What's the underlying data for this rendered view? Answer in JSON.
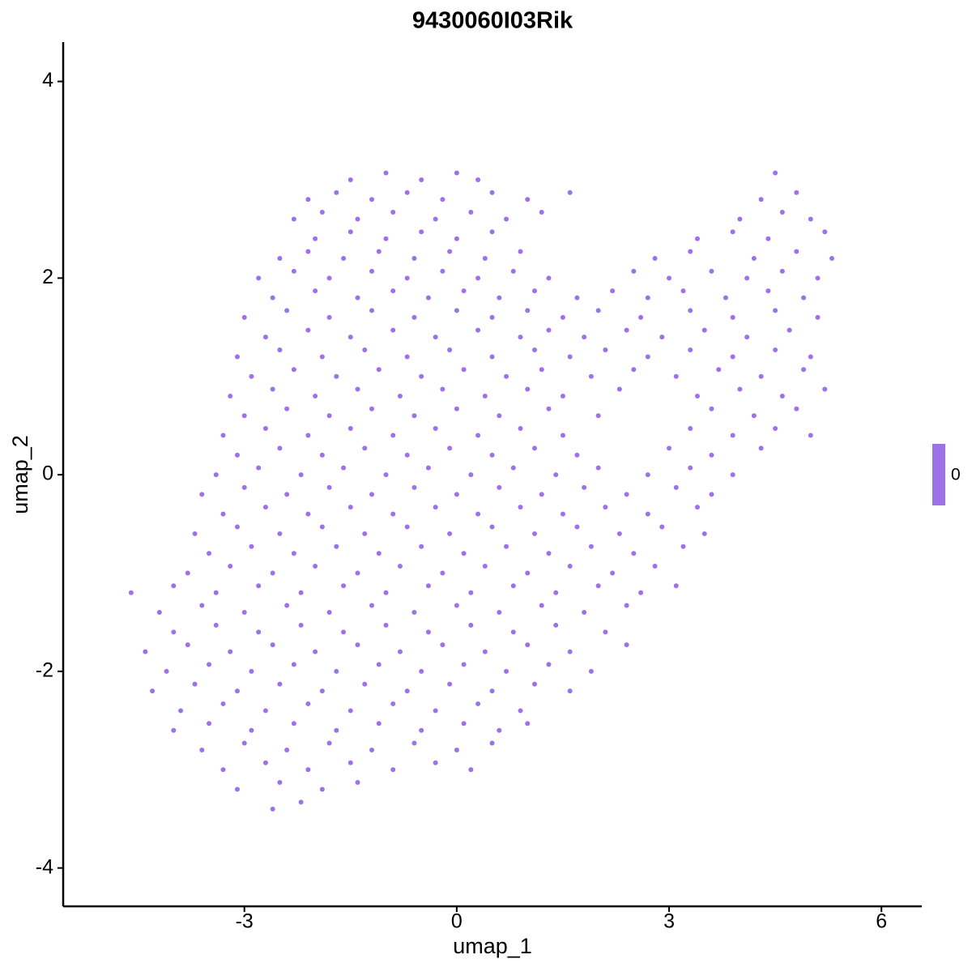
{
  "chart_data": {
    "type": "scatter",
    "title": "9430060I03Rik",
    "xlabel": "umap_1",
    "ylabel": "umap_2",
    "color": "#9b72e8",
    "xlim": [
      -5.56,
      6.57
    ],
    "ylim": [
      -4.39,
      4.4
    ],
    "xticks": [
      -3,
      0,
      3,
      6
    ],
    "yticks": [
      -4,
      -2,
      0,
      2,
      4
    ],
    "grid": false,
    "colorbar_ticks": [
      0
    ],
    "x": [
      -1.5,
      -1,
      -0.5,
      0,
      0.3,
      4.5,
      -2.1,
      -1.7,
      -1.2,
      -0.7,
      -0.2,
      0.5,
      1.0,
      1.6,
      4.3,
      4.8,
      -2.3,
      -1.9,
      -1.4,
      -0.9,
      -0.3,
      0.2,
      0.7,
      1.2,
      4.0,
      4.6,
      5.0,
      -2.0,
      -1.5,
      -1.0,
      -0.5,
      0,
      0.5,
      3.4,
      3.9,
      4.4,
      5.2,
      -2.5,
      -2.1,
      -1.6,
      -1.1,
      -0.6,
      -0.1,
      0.4,
      0.9,
      2.8,
      3.3,
      4.2,
      4.8,
      5.3,
      -2.8,
      -2.3,
      -1.8,
      -1.2,
      -0.7,
      -0.2,
      0.3,
      0.8,
      1.3,
      2.5,
      3.0,
      3.6,
      4.1,
      4.6,
      5.1,
      -2.6,
      -2.0,
      -1.4,
      -0.9,
      -0.4,
      0.1,
      0.6,
      1.1,
      1.7,
      2.2,
      2.7,
      3.2,
      3.8,
      4.4,
      4.9,
      -3.0,
      -2.4,
      -1.8,
      -1.2,
      -0.6,
      0,
      0.5,
      1.0,
      1.5,
      2.0,
      2.6,
      3.3,
      3.9,
      4.5,
      5.1,
      -2.7,
      -2.1,
      -1.5,
      -0.9,
      -0.3,
      0.3,
      0.9,
      1.3,
      1.8,
      2.4,
      2.9,
      3.5,
      4.1,
      4.7,
      -3.1,
      -2.5,
      -1.9,
      -1.3,
      -0.7,
      -0.1,
      0.5,
      1.1,
      1.6,
      2.1,
      2.7,
      3.3,
      3.9,
      4.5,
      5.0,
      -2.9,
      -2.3,
      -1.7,
      -1.1,
      -0.5,
      0.1,
      0.7,
      1.2,
      1.9,
      2.5,
      3.1,
      3.7,
      4.3,
      4.9,
      -3.2,
      -2.6,
      -2.0,
      -1.4,
      -0.8,
      -0.2,
      0.4,
      1.0,
      1.5,
      2.3,
      3.4,
      4.0,
      4.6,
      5.2,
      -3.0,
      -2.4,
      -1.8,
      -1.2,
      -0.6,
      0,
      0.6,
      1.3,
      2.0,
      3.6,
      4.2,
      4.8,
      -3.3,
      -2.7,
      -2.1,
      -1.5,
      -0.9,
      -0.3,
      0.3,
      0.9,
      1.5,
      3.3,
      3.9,
      4.5,
      5.0,
      -3.1,
      -2.5,
      -1.9,
      -1.3,
      -0.7,
      -0.1,
      0.5,
      1.1,
      1.7,
      3.0,
      3.6,
      4.3,
      -3.4,
      -2.8,
      -2.2,
      -1.6,
      -1.0,
      -0.4,
      0.2,
      0.8,
      1.4,
      2.0,
      2.7,
      3.3,
      3.9,
      -3.6,
      -3.0,
      -2.4,
      -1.8,
      -1.2,
      -0.6,
      0,
      0.6,
      1.2,
      1.8,
      2.4,
      3.1,
      3.6,
      -3.3,
      -2.7,
      -2.1,
      -1.5,
      -0.9,
      -0.3,
      0.3,
      0.9,
      1.5,
      2.1,
      2.7,
      3.4,
      -3.7,
      -3.1,
      -2.5,
      -1.9,
      -1.3,
      -0.7,
      -0.1,
      0.5,
      1.1,
      1.7,
      2.3,
      2.9,
      3.5,
      -3.5,
      -2.9,
      -2.3,
      -1.7,
      -1.1,
      -0.5,
      0.1,
      0.7,
      1.3,
      1.9,
      2.5,
      3.2,
      -3.8,
      -3.2,
      -2.6,
      -2.0,
      -1.4,
      -0.8,
      -0.2,
      0.4,
      1.0,
      1.6,
      2.2,
      2.8,
      -4.6,
      -4.0,
      -3.4,
      -2.8,
      -2.2,
      -1.6,
      -1.0,
      -0.4,
      0.2,
      0.8,
      1.4,
      2.0,
      2.6,
      3.1,
      -4.2,
      -3.6,
      -3.0,
      -2.4,
      -1.8,
      -1.2,
      -0.6,
      0,
      0.6,
      1.2,
      1.8,
      2.4,
      -4.0,
      -3.4,
      -2.8,
      -2.2,
      -1.6,
      -1.0,
      -0.4,
      0.2,
      0.8,
      1.4,
      2.1,
      -4.4,
      -3.8,
      -3.2,
      -2.6,
      -2.0,
      -1.4,
      -0.8,
      -0.2,
      0.4,
      1.0,
      1.6,
      2.4,
      -4.1,
      -3.5,
      -2.9,
      -2.3,
      -1.7,
      -1.1,
      -0.5,
      0.1,
      0.7,
      1.3,
      1.9,
      -4.3,
      -3.7,
      -3.1,
      -2.5,
      -1.9,
      -1.3,
      -0.7,
      -0.1,
      0.5,
      1.1,
      1.6,
      -3.9,
      -3.3,
      -2.7,
      -2.1,
      -1.5,
      -0.9,
      -0.3,
      0.3,
      0.9,
      -4.0,
      -3.5,
      -2.9,
      -2.3,
      -1.7,
      -1.1,
      -0.5,
      0.1,
      0.6,
      1.0,
      -3.6,
      -3.0,
      -2.4,
      -1.8,
      -1.2,
      -0.6,
      0,
      0.5,
      -3.3,
      -2.7,
      -2.1,
      -1.5,
      -0.9,
      -0.3,
      0.2,
      -3.1,
      -2.5,
      -1.9,
      -1.4,
      -2.6,
      -2.2
    ],
    "y": [
      3.0,
      3.07,
      3.0,
      3.07,
      3.0,
      3.07,
      2.8,
      2.87,
      2.8,
      2.87,
      2.8,
      2.87,
      2.8,
      2.87,
      2.8,
      2.87,
      2.6,
      2.67,
      2.6,
      2.67,
      2.6,
      2.67,
      2.6,
      2.67,
      2.6,
      2.67,
      2.6,
      2.4,
      2.47,
      2.4,
      2.47,
      2.4,
      2.47,
      2.4,
      2.47,
      2.4,
      2.47,
      2.2,
      2.27,
      2.2,
      2.27,
      2.2,
      2.27,
      2.2,
      2.27,
      2.2,
      2.27,
      2.2,
      2.27,
      2.2,
      2.0,
      2.07,
      2.0,
      2.07,
      2.0,
      2.07,
      2.0,
      2.07,
      2.0,
      2.07,
      2.0,
      2.07,
      2.0,
      2.07,
      2.0,
      1.8,
      1.87,
      1.8,
      1.87,
      1.8,
      1.87,
      1.8,
      1.87,
      1.8,
      1.87,
      1.8,
      1.87,
      1.8,
      1.87,
      1.8,
      1.6,
      1.67,
      1.6,
      1.67,
      1.6,
      1.67,
      1.6,
      1.67,
      1.6,
      1.67,
      1.6,
      1.67,
      1.6,
      1.67,
      1.6,
      1.4,
      1.47,
      1.4,
      1.47,
      1.4,
      1.47,
      1.4,
      1.47,
      1.4,
      1.47,
      1.4,
      1.47,
      1.4,
      1.47,
      1.2,
      1.27,
      1.2,
      1.27,
      1.2,
      1.27,
      1.2,
      1.27,
      1.2,
      1.27,
      1.2,
      1.27,
      1.2,
      1.27,
      1.2,
      1.0,
      1.07,
      1.0,
      1.07,
      1.0,
      1.07,
      1.0,
      1.07,
      1.0,
      1.07,
      1.0,
      1.07,
      1.0,
      1.07,
      0.8,
      0.87,
      0.8,
      0.87,
      0.8,
      0.87,
      0.8,
      0.87,
      0.8,
      0.87,
      0.8,
      0.87,
      0.8,
      0.87,
      0.6,
      0.67,
      0.6,
      0.67,
      0.6,
      0.67,
      0.6,
      0.67,
      0.6,
      0.67,
      0.6,
      0.67,
      0.4,
      0.47,
      0.4,
      0.47,
      0.4,
      0.47,
      0.4,
      0.47,
      0.4,
      0.47,
      0.4,
      0.47,
      0.4,
      0.2,
      0.27,
      0.2,
      0.27,
      0.2,
      0.27,
      0.2,
      0.27,
      0.2,
      0.27,
      0.2,
      0.27,
      0,
      0.07,
      0,
      0.07,
      0,
      0.07,
      0,
      0.07,
      0,
      0.07,
      0,
      0.07,
      0,
      -0.2,
      -0.13,
      -0.2,
      -0.13,
      -0.2,
      -0.13,
      -0.2,
      -0.13,
      -0.2,
      -0.13,
      -0.2,
      -0.13,
      -0.2,
      -0.4,
      -0.33,
      -0.4,
      -0.33,
      -0.4,
      -0.33,
      -0.4,
      -0.33,
      -0.4,
      -0.33,
      -0.4,
      -0.33,
      -0.6,
      -0.53,
      -0.6,
      -0.53,
      -0.6,
      -0.53,
      -0.6,
      -0.53,
      -0.6,
      -0.53,
      -0.6,
      -0.53,
      -0.6,
      -0.8,
      -0.73,
      -0.8,
      -0.73,
      -0.8,
      -0.73,
      -0.8,
      -0.73,
      -0.8,
      -0.73,
      -0.8,
      -0.73,
      -1.0,
      -0.93,
      -1.0,
      -0.93,
      -1.0,
      -0.93,
      -1.0,
      -0.93,
      -1.0,
      -0.93,
      -1.0,
      -0.93,
      -1.2,
      -1.13,
      -1.2,
      -1.13,
      -1.2,
      -1.13,
      -1.2,
      -1.13,
      -1.2,
      -1.13,
      -1.2,
      -1.13,
      -1.2,
      -1.13,
      -1.4,
      -1.33,
      -1.4,
      -1.33,
      -1.4,
      -1.33,
      -1.4,
      -1.33,
      -1.4,
      -1.33,
      -1.4,
      -1.33,
      -1.6,
      -1.53,
      -1.6,
      -1.53,
      -1.6,
      -1.53,
      -1.6,
      -1.53,
      -1.6,
      -1.53,
      -1.6,
      -1.8,
      -1.73,
      -1.8,
      -1.73,
      -1.8,
      -1.73,
      -1.8,
      -1.73,
      -1.8,
      -1.73,
      -1.8,
      -1.73,
      -2.0,
      -1.93,
      -2.0,
      -1.93,
      -2.0,
      -1.93,
      -2.0,
      -1.93,
      -2.0,
      -1.93,
      -2.0,
      -2.2,
      -2.13,
      -2.2,
      -2.13,
      -2.2,
      -2.13,
      -2.2,
      -2.13,
      -2.2,
      -2.13,
      -2.2,
      -2.4,
      -2.33,
      -2.4,
      -2.33,
      -2.4,
      -2.33,
      -2.4,
      -2.33,
      -2.4,
      -2.6,
      -2.53,
      -2.6,
      -2.53,
      -2.6,
      -2.53,
      -2.6,
      -2.53,
      -2.6,
      -2.53,
      -2.8,
      -2.73,
      -2.8,
      -2.73,
      -2.8,
      -2.73,
      -2.8,
      -2.73,
      -3.0,
      -2.93,
      -3.0,
      -2.93,
      -3.0,
      -2.93,
      -3.0,
      -3.2,
      -3.13,
      -3.2,
      -3.13,
      -3.4,
      -3.33
    ]
  }
}
